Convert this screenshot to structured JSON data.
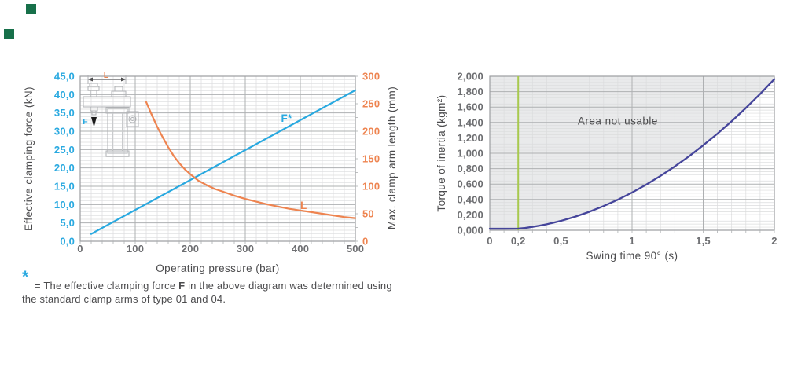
{
  "colors": {
    "blue": "#29A9E0",
    "orange": "#EE8450",
    "indigo": "#45459B",
    "green": "#A8C94F",
    "gray_text": "#6D6E71",
    "dark_text": "#4B4B4D",
    "grid_minor": "#DBDCDD",
    "grid_major": "#AEB0B2",
    "frame": "#9B9DA0",
    "area_fill": "#E9EAEB",
    "logo_green": "#17704A",
    "arrow_black": "#1A1A1A",
    "icon_stroke": "#AFB1B4",
    "icon_dark": "#4D4D4F"
  },
  "footnote": {
    "star": "*",
    "line1_pre": "= The effective clamping force ",
    "line1_bold": "F",
    "line1_post": " in the above diagram was determined using",
    "line2": "the standard clamp arms of type 01 and 04."
  },
  "chart_data": [
    {
      "id": "clamping",
      "type": "line",
      "title": "",
      "xlabel": "Operating pressure (bar)",
      "ylabel": "Effective clamping force (kN)",
      "y2label": "Max. clamp arm length (mm)",
      "xlim": [
        0,
        500
      ],
      "ylim": [
        0,
        45
      ],
      "y2lim": [
        0,
        300
      ],
      "x_minor_step": 20,
      "y_minor_step": 1,
      "x_major_grid": [
        100,
        200,
        300,
        400
      ],
      "y_major_grid": [
        5,
        10,
        15,
        20,
        25,
        30,
        35,
        40
      ],
      "y2_stub_step": 25,
      "x_ticks": [
        {
          "v": 0,
          "label": "0"
        },
        {
          "v": 100,
          "label": "100"
        },
        {
          "v": 200,
          "label": "200"
        },
        {
          "v": 300,
          "label": "300"
        },
        {
          "v": 400,
          "label": "400"
        },
        {
          "v": 500,
          "label": "500"
        }
      ],
      "y_ticks": [
        {
          "v": 0,
          "label": "0,0"
        },
        {
          "v": 5,
          "label": "5,0"
        },
        {
          "v": 10,
          "label": "10,0"
        },
        {
          "v": 15,
          "label": "15,0"
        },
        {
          "v": 20,
          "label": "20,0"
        },
        {
          "v": 25,
          "label": "25,0"
        },
        {
          "v": 30,
          "label": "30,0"
        },
        {
          "v": 35,
          "label": "35,0"
        },
        {
          "v": 40,
          "label": "40,0"
        },
        {
          "v": 45,
          "label": "45,0"
        }
      ],
      "y2_ticks": [
        {
          "v": 0,
          "label": "0"
        },
        {
          "v": 50,
          "label": "50"
        },
        {
          "v": 100,
          "label": "100"
        },
        {
          "v": 150,
          "label": "150"
        },
        {
          "v": 200,
          "label": "200"
        },
        {
          "v": 250,
          "label": "250"
        },
        {
          "v": 300,
          "label": "300"
        }
      ],
      "y_tick_color_key": "blue",
      "y2_tick_color_key": "orange",
      "x_tick_color_key": "gray_text",
      "series": [
        {
          "name": "effective-clamping-force",
          "axis": "y",
          "color_key": "blue",
          "width": 2.2,
          "points": [
            [
              20,
              2.0
            ],
            [
              500,
              41.2
            ]
          ]
        },
        {
          "name": "max-clamp-arm-length",
          "axis": "y2",
          "color_key": "orange",
          "width": 2.2,
          "points": [
            [
              120,
              253
            ],
            [
              130,
              230
            ],
            [
              140,
              208
            ],
            [
              150,
              189
            ],
            [
              160,
              171
            ],
            [
              170,
              155
            ],
            [
              180,
              142
            ],
            [
              190,
              131
            ],
            [
              200,
              122
            ],
            [
              215,
              110
            ],
            [
              230,
              102
            ],
            [
              245,
              95
            ],
            [
              260,
              90
            ],
            [
              280,
              83
            ],
            [
              300,
              77
            ],
            [
              320,
              72
            ],
            [
              340,
              67
            ],
            [
              360,
              63
            ],
            [
              380,
              59
            ],
            [
              400,
              56
            ],
            [
              420,
              53
            ],
            [
              440,
              50
            ],
            [
              460,
              47
            ],
            [
              480,
              44
            ],
            [
              500,
              42
            ]
          ]
        }
      ],
      "annotations": [
        {
          "name": "f-curve-label",
          "text": "F*",
          "x": 375,
          "y": 32.6,
          "axis": "y",
          "color_key": "blue",
          "size": 13.5,
          "weight": 700
        },
        {
          "name": "l-curve-label",
          "text": "L",
          "x": 406,
          "y": 58.6,
          "axis": "y2",
          "color_key": "orange",
          "size": 13.5,
          "weight": 700
        }
      ],
      "icon_labels": {
        "length_label": "L",
        "force_label": "F"
      }
    },
    {
      "id": "inertia",
      "type": "line",
      "title": "",
      "xlabel": "Swing time 90° (s)",
      "ylabel": "Torque of inertia (kgm²)",
      "xlim": [
        0,
        2
      ],
      "ylim": [
        0,
        2
      ],
      "x_minor_step": 0.1,
      "y_minor_step": 0.04,
      "x_major_grid": [
        0.5,
        1,
        1.5
      ],
      "y_major_grid": [
        0.2,
        0.4,
        0.6,
        0.8,
        1.0,
        1.2,
        1.4,
        1.6,
        1.8
      ],
      "x_ticks": [
        {
          "v": 0,
          "label": "0"
        },
        {
          "v": 0.2,
          "label": "0,2"
        },
        {
          "v": 0.5,
          "label": "0,5"
        },
        {
          "v": 1,
          "label": "1"
        },
        {
          "v": 1.5,
          "label": "1,5"
        },
        {
          "v": 2,
          "label": "2"
        }
      ],
      "y_ticks": [
        {
          "v": 0,
          "label": "0,000"
        },
        {
          "v": 0.2,
          "label": "0,200"
        },
        {
          "v": 0.4,
          "label": "0,400"
        },
        {
          "v": 0.6,
          "label": "0,600"
        },
        {
          "v": 0.8,
          "label": "0,800"
        },
        {
          "v": 1.0,
          "label": "1,000"
        },
        {
          "v": 1.2,
          "label": "1,200"
        },
        {
          "v": 1.4,
          "label": "1,400"
        },
        {
          "v": 1.6,
          "label": "1,600"
        },
        {
          "v": 1.8,
          "label": "1,800"
        },
        {
          "v": 2.0,
          "label": "2,000"
        }
      ],
      "y_tick_color_key": "gray_text",
      "x_tick_color_key": "gray_text",
      "vlines": [
        {
          "x": 0.2,
          "color_key": "green"
        }
      ],
      "series": [
        {
          "name": "inertia-limit",
          "axis": "y",
          "color_key": "indigo",
          "width": 2.3,
          "fill_above": true,
          "points": [
            [
              0,
              0.02
            ],
            [
              0.1,
              0.02
            ],
            [
              0.2,
              0.021
            ],
            [
              0.25,
              0.03
            ],
            [
              0.3,
              0.044
            ],
            [
              0.35,
              0.06
            ],
            [
              0.4,
              0.078
            ],
            [
              0.45,
              0.099
            ],
            [
              0.5,
              0.122
            ],
            [
              0.6,
              0.176
            ],
            [
              0.7,
              0.24
            ],
            [
              0.8,
              0.314
            ],
            [
              0.9,
              0.397
            ],
            [
              1.0,
              0.49
            ],
            [
              1.1,
              0.593
            ],
            [
              1.2,
              0.706
            ],
            [
              1.3,
              0.828
            ],
            [
              1.4,
              0.96
            ],
            [
              1.5,
              1.103
            ],
            [
              1.6,
              1.254
            ],
            [
              1.7,
              1.416
            ],
            [
              1.8,
              1.588
            ],
            [
              1.9,
              1.77
            ],
            [
              2.0,
              1.962
            ]
          ]
        }
      ],
      "annotations": [
        {
          "name": "area-not-usable-label",
          "text": "Area not usable",
          "x": 0.9,
          "y": 1.37,
          "axis": "y",
          "color_key": "dark_text",
          "size": 13.5,
          "weight": 400,
          "ls": 0.5
        }
      ]
    }
  ]
}
